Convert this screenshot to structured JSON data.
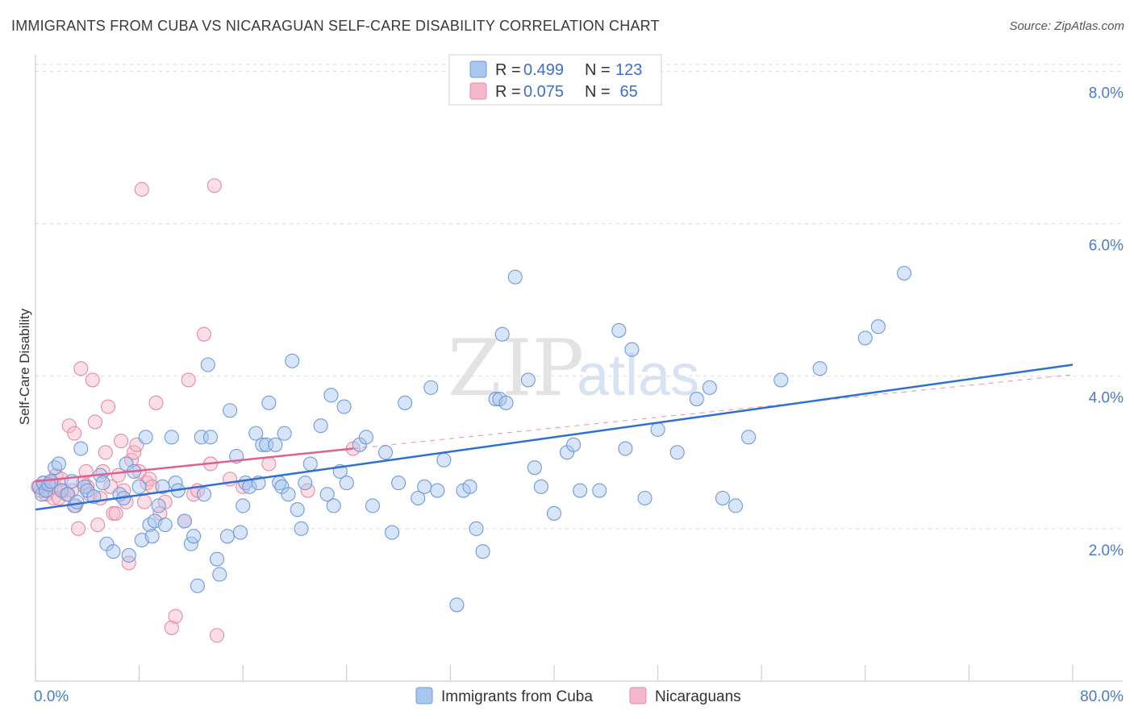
{
  "title": "IMMIGRANTS FROM CUBA VS NICARAGUAN SELF-CARE DISABILITY CORRELATION CHART",
  "source": "Source: ZipAtlas.com",
  "watermark": {
    "zip": "ZIP",
    "atlas": "atlas"
  },
  "colors": {
    "blue_fill": "#a9c6ef",
    "blue_stroke": "#6f9ad8",
    "blue_line": "#2f6fd0",
    "pink_fill": "#f5b8ca",
    "pink_stroke": "#e58aa6",
    "pink_line": "#e0608d",
    "grid": "#d9d9d9",
    "tick": "#4a7bc9"
  },
  "legend": {
    "rows": [
      {
        "r_label": "R = ",
        "r_value": "0.499",
        "n_label": "N = ",
        "n_value": "123"
      },
      {
        "r_label": "R = ",
        "r_value": "0.075",
        "n_label": "N = ",
        "n_value": " 65"
      }
    ]
  },
  "chart_data": {
    "type": "scatter",
    "title": "IMMIGRANTS FROM CUBA VS NICARAGUAN SELF-CARE DISABILITY CORRELATION CHART",
    "xlabel": "",
    "ylabel": "Self-Care Disability",
    "xlim": [
      0,
      80
    ],
    "ylim": [
      0,
      8.3
    ],
    "x_tick_labels": [
      "0.0%",
      "80.0%"
    ],
    "y_ticks": [
      2,
      4,
      6,
      8
    ],
    "y_tick_labels": [
      "2.0%",
      "4.0%",
      "6.0%",
      "8.0%"
    ],
    "grid": true,
    "legend_position": "top-center and bottom",
    "series": [
      {
        "name": "Immigrants from Cuba",
        "color": "#a9c6ef",
        "trend": {
          "x": [
            0,
            80
          ],
          "y": [
            2.25,
            4.15
          ]
        },
        "points": [
          [
            0.3,
            2.55
          ],
          [
            0.5,
            2.45
          ],
          [
            0.6,
            2.6
          ],
          [
            0.8,
            2.5
          ],
          [
            1.0,
            2.58
          ],
          [
            1.2,
            2.62
          ],
          [
            1.5,
            2.8
          ],
          [
            1.8,
            2.85
          ],
          [
            2.0,
            2.5
          ],
          [
            2.5,
            2.45
          ],
          [
            2.8,
            2.62
          ],
          [
            3.0,
            2.3
          ],
          [
            3.2,
            2.35
          ],
          [
            3.5,
            3.05
          ],
          [
            3.8,
            2.55
          ],
          [
            4.0,
            2.5
          ],
          [
            4.5,
            2.42
          ],
          [
            5.0,
            2.7
          ],
          [
            5.2,
            2.6
          ],
          [
            5.5,
            1.8
          ],
          [
            6.0,
            1.7
          ],
          [
            6.5,
            2.45
          ],
          [
            6.8,
            2.4
          ],
          [
            7.0,
            2.85
          ],
          [
            7.2,
            1.65
          ],
          [
            7.6,
            2.75
          ],
          [
            8.0,
            2.55
          ],
          [
            8.2,
            1.85
          ],
          [
            8.5,
            3.2
          ],
          [
            8.8,
            2.05
          ],
          [
            9.0,
            1.9
          ],
          [
            9.2,
            2.1
          ],
          [
            9.5,
            2.3
          ],
          [
            9.8,
            2.55
          ],
          [
            10.0,
            2.05
          ],
          [
            10.5,
            3.2
          ],
          [
            10.8,
            2.6
          ],
          [
            11.0,
            2.5
          ],
          [
            11.5,
            2.1
          ],
          [
            12.0,
            1.8
          ],
          [
            12.2,
            1.9
          ],
          [
            12.5,
            1.25
          ],
          [
            12.8,
            3.2
          ],
          [
            13.0,
            2.45
          ],
          [
            13.3,
            4.15
          ],
          [
            13.5,
            3.2
          ],
          [
            14.0,
            1.6
          ],
          [
            14.2,
            1.4
          ],
          [
            14.8,
            1.9
          ],
          [
            15.0,
            3.55
          ],
          [
            15.5,
            2.95
          ],
          [
            15.8,
            1.95
          ],
          [
            16.0,
            2.3
          ],
          [
            16.2,
            2.6
          ],
          [
            16.5,
            2.55
          ],
          [
            17.0,
            3.25
          ],
          [
            17.2,
            2.6
          ],
          [
            17.5,
            3.1
          ],
          [
            17.8,
            3.1
          ],
          [
            18.0,
            3.65
          ],
          [
            18.5,
            3.1
          ],
          [
            18.8,
            2.6
          ],
          [
            19.0,
            2.55
          ],
          [
            19.2,
            3.25
          ],
          [
            19.5,
            2.45
          ],
          [
            19.8,
            4.2
          ],
          [
            20.2,
            2.25
          ],
          [
            20.5,
            2.0
          ],
          [
            20.8,
            2.6
          ],
          [
            21.2,
            2.85
          ],
          [
            22.0,
            3.35
          ],
          [
            22.5,
            2.45
          ],
          [
            22.8,
            3.75
          ],
          [
            23.0,
            2.3
          ],
          [
            23.5,
            2.75
          ],
          [
            23.8,
            3.6
          ],
          [
            24.0,
            2.6
          ],
          [
            25.0,
            3.1
          ],
          [
            25.5,
            3.2
          ],
          [
            26.0,
            2.3
          ],
          [
            27.0,
            3.0
          ],
          [
            27.5,
            1.95
          ],
          [
            28.0,
            2.6
          ],
          [
            28.5,
            3.65
          ],
          [
            29.5,
            2.4
          ],
          [
            30.0,
            2.55
          ],
          [
            30.5,
            3.85
          ],
          [
            31.0,
            2.5
          ],
          [
            31.5,
            2.9
          ],
          [
            32.5,
            1.0
          ],
          [
            33.0,
            2.5
          ],
          [
            33.5,
            2.55
          ],
          [
            34.0,
            2.0
          ],
          [
            34.5,
            1.7
          ],
          [
            35.5,
            3.7
          ],
          [
            35.8,
            3.7
          ],
          [
            36.0,
            4.55
          ],
          [
            36.3,
            3.65
          ],
          [
            37.0,
            5.3
          ],
          [
            38.0,
            3.95
          ],
          [
            38.5,
            2.8
          ],
          [
            39.0,
            2.55
          ],
          [
            40.0,
            2.2
          ],
          [
            41.0,
            3.0
          ],
          [
            41.5,
            3.1
          ],
          [
            42.0,
            2.5
          ],
          [
            43.5,
            2.5
          ],
          [
            45.0,
            4.6
          ],
          [
            45.5,
            3.05
          ],
          [
            46.0,
            4.35
          ],
          [
            47.0,
            2.4
          ],
          [
            48.0,
            3.3
          ],
          [
            49.5,
            3.0
          ],
          [
            51.0,
            3.7
          ],
          [
            52.0,
            3.85
          ],
          [
            53.0,
            2.4
          ],
          [
            54.0,
            2.3
          ],
          [
            55.0,
            3.2
          ],
          [
            57.5,
            3.95
          ],
          [
            60.5,
            4.1
          ],
          [
            64.0,
            4.5
          ],
          [
            65.0,
            4.65
          ],
          [
            67.0,
            5.35
          ]
        ]
      },
      {
        "name": "Nicaraguans",
        "color": "#f5b8ca",
        "trend": {
          "x": [
            0,
            24.5
          ],
          "y": [
            2.62,
            3.05
          ]
        },
        "dashed_extension": {
          "x": [
            24.5,
            80
          ],
          "y": [
            3.05,
            4.02
          ]
        },
        "points": [
          [
            0.2,
            2.55
          ],
          [
            0.4,
            2.5
          ],
          [
            0.6,
            2.6
          ],
          [
            0.8,
            2.45
          ],
          [
            1.0,
            2.5
          ],
          [
            1.2,
            2.6
          ],
          [
            1.4,
            2.4
          ],
          [
            1.5,
            2.55
          ],
          [
            1.6,
            2.7
          ],
          [
            1.8,
            2.4
          ],
          [
            2.0,
            2.65
          ],
          [
            2.2,
            2.5
          ],
          [
            2.4,
            2.45
          ],
          [
            2.6,
            3.35
          ],
          [
            2.8,
            2.5
          ],
          [
            3.0,
            3.25
          ],
          [
            3.1,
            2.3
          ],
          [
            3.3,
            2.0
          ],
          [
            3.5,
            4.1
          ],
          [
            3.7,
            2.6
          ],
          [
            3.9,
            2.75
          ],
          [
            4.0,
            2.55
          ],
          [
            4.2,
            2.45
          ],
          [
            4.4,
            3.95
          ],
          [
            4.6,
            3.4
          ],
          [
            4.8,
            2.05
          ],
          [
            5.0,
            2.4
          ],
          [
            5.2,
            2.75
          ],
          [
            5.4,
            3.0
          ],
          [
            5.6,
            3.6
          ],
          [
            5.8,
            2.55
          ],
          [
            6.0,
            2.2
          ],
          [
            6.2,
            2.2
          ],
          [
            6.4,
            2.7
          ],
          [
            6.6,
            3.15
          ],
          [
            6.8,
            2.5
          ],
          [
            7.0,
            2.35
          ],
          [
            7.2,
            1.55
          ],
          [
            7.4,
            2.9
          ],
          [
            7.6,
            3.0
          ],
          [
            7.8,
            3.1
          ],
          [
            8.0,
            2.75
          ],
          [
            8.2,
            6.45
          ],
          [
            8.4,
            2.35
          ],
          [
            8.6,
            2.6
          ],
          [
            8.8,
            2.65
          ],
          [
            9.0,
            2.55
          ],
          [
            9.3,
            3.65
          ],
          [
            9.6,
            2.2
          ],
          [
            10.0,
            2.35
          ],
          [
            10.5,
            0.7
          ],
          [
            10.8,
            0.85
          ],
          [
            11.5,
            2.1
          ],
          [
            11.8,
            3.95
          ],
          [
            12.2,
            2.45
          ],
          [
            12.5,
            2.5
          ],
          [
            13.0,
            4.55
          ],
          [
            13.5,
            2.85
          ],
          [
            13.8,
            6.5
          ],
          [
            14.0,
            0.6
          ],
          [
            15.0,
            2.65
          ],
          [
            16.0,
            2.55
          ],
          [
            18.0,
            2.85
          ],
          [
            21.0,
            2.5
          ],
          [
            24.5,
            3.05
          ]
        ]
      }
    ]
  },
  "bottom_legend": [
    {
      "label": "Immigrants from Cuba"
    },
    {
      "label": "Nicaraguans"
    }
  ]
}
